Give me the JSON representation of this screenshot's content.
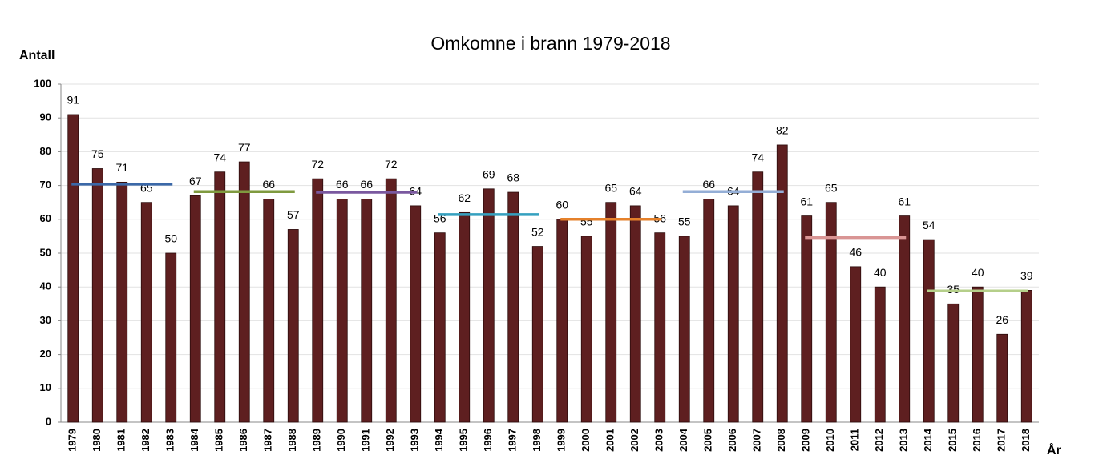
{
  "chart_data": {
    "type": "bar",
    "title": "Omkomne i brann 1979-2018",
    "y_label": "Antall",
    "x_label": "År",
    "categories": [
      "1979",
      "1980",
      "1981",
      "1982",
      "1983",
      "1984",
      "1985",
      "1986",
      "1987",
      "1988",
      "1989",
      "1990",
      "1991",
      "1992",
      "1993",
      "1994",
      "1995",
      "1996",
      "1997",
      "1998",
      "1999",
      "2000",
      "2001",
      "2002",
      "2003",
      "2004",
      "2005",
      "2006",
      "2007",
      "2008",
      "2009",
      "2010",
      "2011",
      "2012",
      "2013",
      "2014",
      "2015",
      "2016",
      "2017",
      "2018"
    ],
    "values": [
      91,
      75,
      71,
      65,
      50,
      67,
      74,
      77,
      66,
      57,
      72,
      66,
      66,
      72,
      64,
      56,
      62,
      69,
      68,
      52,
      60,
      55,
      65,
      64,
      56,
      55,
      66,
      64,
      74,
      82,
      61,
      65,
      46,
      40,
      61,
      54,
      35,
      40,
      26,
      39
    ],
    "color": "#5e1f20",
    "averages": [
      {
        "from": "1979",
        "to": "1983",
        "value": 70.4,
        "color": "#3b68a8"
      },
      {
        "from": "1984",
        "to": "1988",
        "value": 68.2,
        "color": "#7f9a3f"
      },
      {
        "from": "1989",
        "to": "1993",
        "value": 68,
        "color": "#7a589f"
      },
      {
        "from": "1994",
        "to": "1998",
        "value": 61.4,
        "color": "#35a0bf"
      },
      {
        "from": "1999",
        "to": "2003",
        "value": 60,
        "color": "#e5812b"
      },
      {
        "from": "2004",
        "to": "2008",
        "value": 68.2,
        "color": "#94aed6"
      },
      {
        "from": "2009",
        "to": "2013",
        "value": 54.6,
        "color": "#d99594"
      },
      {
        "from": "2014",
        "to": "2018",
        "value": 38.8,
        "color": "#b5cf8a"
      }
    ],
    "ylim": [
      0,
      100
    ],
    "yticks": [
      0,
      10,
      20,
      30,
      40,
      50,
      60,
      70,
      80,
      90,
      100
    ],
    "grid": true
  }
}
